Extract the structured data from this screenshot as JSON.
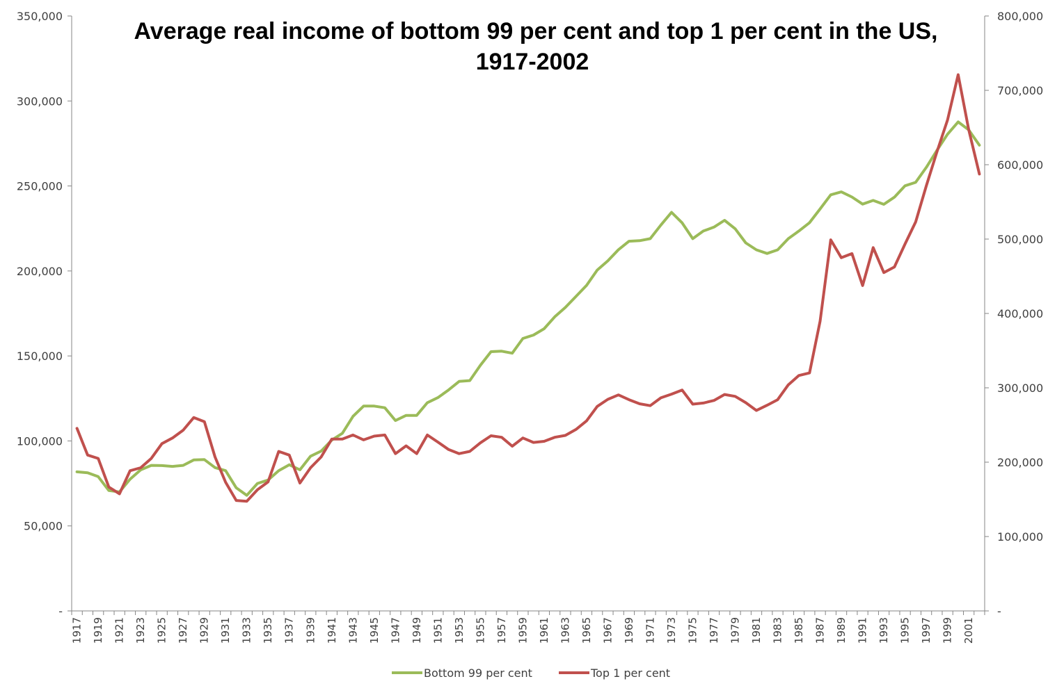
{
  "chart_data": {
    "type": "line",
    "title_lines": [
      "Average real income of bottom 99 per cent and top 1 per cent in the US,",
      "1917-2002"
    ],
    "xlabel": "",
    "ylabel": "",
    "legend_position": "bottom",
    "grid": false,
    "x": [
      1917,
      1918,
      1919,
      1920,
      1921,
      1922,
      1923,
      1924,
      1925,
      1926,
      1927,
      1928,
      1929,
      1930,
      1931,
      1932,
      1933,
      1934,
      1935,
      1936,
      1937,
      1938,
      1939,
      1940,
      1941,
      1942,
      1943,
      1944,
      1945,
      1946,
      1947,
      1948,
      1949,
      1950,
      1951,
      1952,
      1953,
      1954,
      1955,
      1956,
      1957,
      1958,
      1959,
      1960,
      1961,
      1962,
      1963,
      1964,
      1965,
      1966,
      1967,
      1968,
      1969,
      1970,
      1971,
      1972,
      1973,
      1974,
      1975,
      1976,
      1977,
      1978,
      1979,
      1980,
      1981,
      1982,
      1983,
      1984,
      1985,
      1986,
      1987,
      1988,
      1989,
      1990,
      1991,
      1992,
      1993,
      1994,
      1995,
      1996,
      1997,
      1998,
      1999,
      2000,
      2001,
      2002
    ],
    "x_tick_labels": [
      "1917",
      "1919",
      "1921",
      "1923",
      "1925",
      "1927",
      "1929",
      "1931",
      "1933",
      "1935",
      "1937",
      "1939",
      "1941",
      "1943",
      "1945",
      "1947",
      "1949",
      "1951",
      "1953",
      "1955",
      "1957",
      "1959",
      "1961",
      "1963",
      "1965",
      "1967",
      "1969",
      "1971",
      "1973",
      "1975",
      "1977",
      "1979",
      "1981",
      "1983",
      "1985",
      "1987",
      "1989",
      "1991",
      "1993",
      "1995",
      "1997",
      "1999",
      "2001"
    ],
    "y_left": {
      "min": 0,
      "max": 350000,
      "ticks": [
        "-",
        "50,000",
        "100,000",
        "150,000",
        "200,000",
        "250,000",
        "300,000",
        "350,000"
      ]
    },
    "y_right": {
      "min": 0,
      "max": 800000,
      "ticks": [
        "-",
        "100,000",
        "200,000",
        "300,000",
        "400,000",
        "500,000",
        "600,000",
        "700,000",
        "800,000"
      ]
    },
    "series": [
      {
        "name": "Bottom 99 per cent",
        "axis": "left",
        "color": "#9bbb59",
        "values": [
          81800,
          81300,
          79000,
          70800,
          70000,
          77500,
          83000,
          85600,
          85500,
          85000,
          85600,
          88800,
          89000,
          84300,
          82500,
          72400,
          68000,
          75000,
          77000,
          82500,
          86000,
          83000,
          91000,
          94000,
          100500,
          104500,
          114500,
          120500,
          120500,
          119500,
          112000,
          115000,
          115000,
          122500,
          125500,
          130000,
          135000,
          135500,
          144500,
          152500,
          152800,
          151600,
          160300,
          162300,
          166000,
          173000,
          178500,
          185000,
          191500,
          200500,
          205900,
          212500,
          217500,
          217800,
          219000,
          227000,
          234500,
          228300,
          219000,
          223500,
          225800,
          229800,
          224800,
          216500,
          212400,
          210300,
          212400,
          219000,
          223500,
          228400,
          236500,
          244800,
          246500,
          243500,
          239300,
          241500,
          239200,
          243400,
          250100,
          252100,
          260900,
          270900,
          280400,
          287700,
          283000,
          274000
        ]
      },
      {
        "name": "Top 1 per cent",
        "axis": "right",
        "color": "#c0504d",
        "values": [
          245500,
          209500,
          205000,
          166500,
          157500,
          188500,
          192500,
          205000,
          225000,
          232500,
          243000,
          260000,
          254500,
          207000,
          173000,
          148500,
          147500,
          163000,
          173500,
          214500,
          209500,
          172000,
          192500,
          207000,
          231000,
          231000,
          236500,
          230000,
          235000,
          236500,
          211500,
          222000,
          211500,
          236500,
          227000,
          217000,
          211500,
          214500,
          226000,
          235500,
          233500,
          221500,
          232500,
          226500,
          228000,
          233500,
          236000,
          244000,
          255500,
          275000,
          284500,
          290500,
          284000,
          278500,
          276000,
          286500,
          291500,
          297000,
          278000,
          279500,
          283000,
          291000,
          288500,
          280000,
          269500,
          276500,
          284000,
          304000,
          316500,
          320000,
          389500,
          499000,
          475000,
          480500,
          437500,
          488500,
          455000,
          462500,
          493500,
          523000,
          571500,
          617000,
          660000,
          721000,
          647000,
          587500
        ]
      }
    ]
  }
}
